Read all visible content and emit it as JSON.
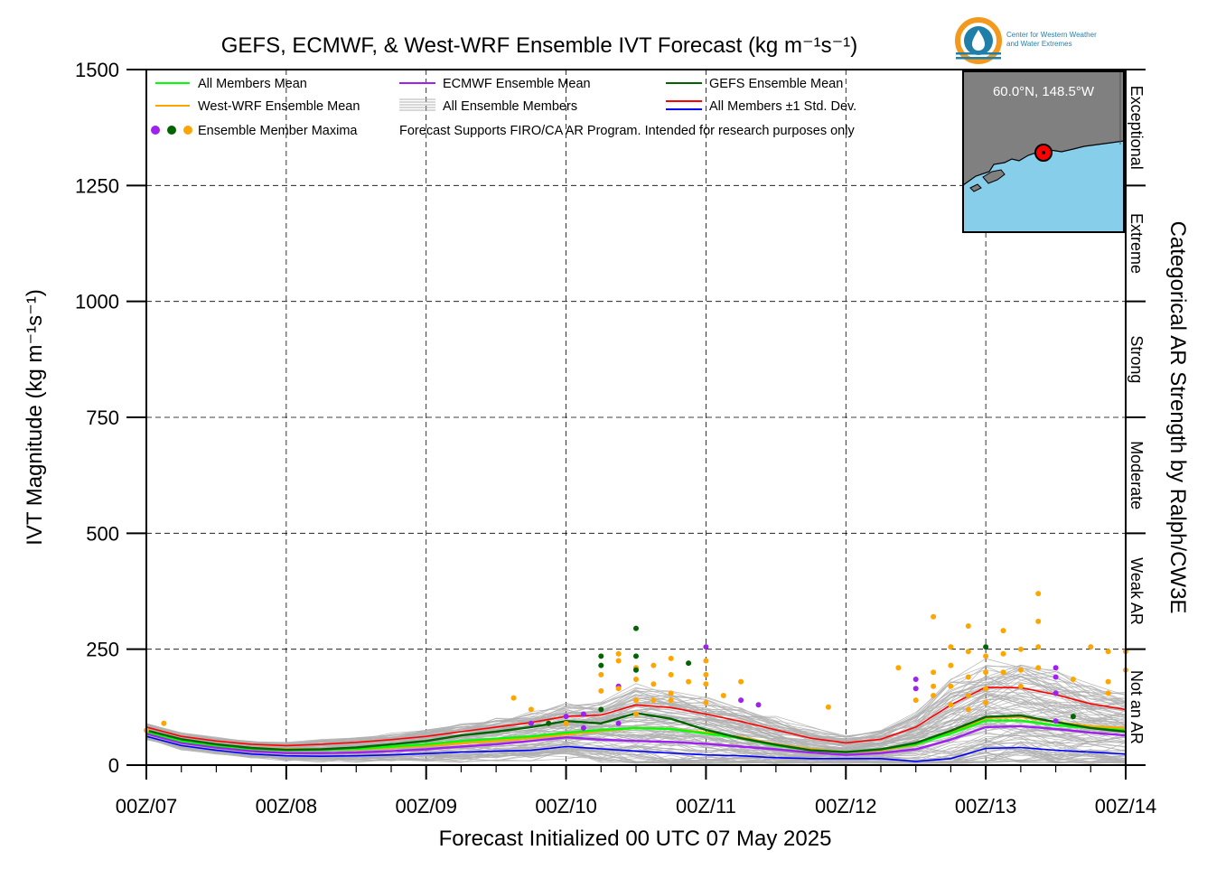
{
  "colors": {
    "all_mean": "#00ff00",
    "westwrf_mean": "#ffa500",
    "ecmwf_mean": "#a020f0",
    "gefs_mean": "#006400",
    "members": "#b0b0b0",
    "std_upper": "#ff0000",
    "std_lower": "#0000ff",
    "ocean": "#87ceeb",
    "land": "#808080",
    "logo_orange": "#f39a1e",
    "logo_blue": "#1f7fa8"
  },
  "logo": {
    "line1": "Center for Western Weather",
    "line2": "and Water Extremes"
  },
  "inset": {
    "location_label": "60.0°N, 148.5°W",
    "icon": "location-marker"
  },
  "chart_data": {
    "type": "line",
    "title": "GEFS, ECMWF, & West-WRF Ensemble IVT Forecast (kg m⁻¹s⁻¹)",
    "xlabel": "Forecast Initialized 00 UTC 07 May 2025",
    "ylabel": "IVT Magnitude (kg m⁻¹s⁻¹)",
    "right_axis_title": "Categorical AR Strength by Ralph/CW3E",
    "ylim": [
      0,
      1500
    ],
    "xlim": [
      0,
      168
    ],
    "x_unit": "forecast hour",
    "grid": true,
    "yticks": [
      0,
      250,
      500,
      750,
      1000,
      1250,
      1500
    ],
    "ytick_labels": [
      "0",
      "250",
      "500",
      "750",
      "1000",
      "1250",
      "1500"
    ],
    "xticks": [
      0,
      24,
      48,
      72,
      96,
      120,
      144,
      168
    ],
    "xtick_labels": [
      "00Z/07",
      "00Z/08",
      "00Z/09",
      "00Z/10",
      "00Z/11",
      "00Z/12",
      "00Z/13",
      "00Z/14"
    ],
    "categories": [
      {
        "label": "Not an AR",
        "from": 0,
        "to": 250
      },
      {
        "label": "Weak AR",
        "from": 250,
        "to": 500
      },
      {
        "label": "Moderate",
        "from": 500,
        "to": 750
      },
      {
        "label": "Strong",
        "from": 750,
        "to": 1000
      },
      {
        "label": "Extreme",
        "from": 1000,
        "to": 1250
      },
      {
        "label": "Exceptional",
        "from": 1250,
        "to": 1500
      }
    ],
    "legend": {
      "placement": "top-left",
      "entries": [
        {
          "label": "All Members Mean",
          "key": "all_mean"
        },
        {
          "label": "ECMWF Ensemble Mean",
          "key": "ecmwf_mean"
        },
        {
          "label": "GEFS Ensemble Mean",
          "key": "gefs_mean"
        },
        {
          "label": "West-WRF Ensemble Mean",
          "key": "westwrf_mean"
        },
        {
          "label": "All Ensemble Members",
          "key": "members"
        },
        {
          "label": "All Members ±1 Std. Dev.",
          "key": "std"
        },
        {
          "label": "Ensemble Member Maxima",
          "key": "maxima"
        }
      ],
      "note": "Forecast Supports FIRO/CA AR Program. Intended for research purposes only"
    },
    "x": [
      0,
      6,
      12,
      18,
      24,
      30,
      36,
      42,
      48,
      54,
      60,
      66,
      72,
      78,
      84,
      90,
      96,
      102,
      108,
      114,
      120,
      126,
      132,
      138,
      144,
      150,
      156,
      162,
      168
    ],
    "series": [
      {
        "name": "All Members Mean",
        "key": "all_mean",
        "values": [
          72,
          52,
          42,
          35,
          32,
          33,
          35,
          40,
          45,
          52,
          57,
          62,
          70,
          76,
          80,
          78,
          68,
          58,
          42,
          32,
          28,
          34,
          45,
          68,
          96,
          96,
          86,
          80,
          75
        ]
      },
      {
        "name": "West-WRF Ensemble Mean",
        "key": "westwrf_mean",
        "values": [
          74,
          55,
          44,
          37,
          34,
          34,
          34,
          38,
          42,
          47,
          52,
          58,
          66,
          74,
          80,
          78,
          70,
          60,
          45,
          34,
          28,
          32,
          44,
          70,
          102,
          104,
          93,
          84,
          80
        ]
      },
      {
        "name": "ECMWF Ensemble Mean",
        "key": "ecmwf_mean",
        "values": [
          68,
          48,
          38,
          30,
          26,
          26,
          27,
          30,
          34,
          40,
          45,
          52,
          60,
          55,
          52,
          50,
          46,
          40,
          34,
          27,
          22,
          26,
          34,
          55,
          82,
          84,
          78,
          70,
          64
        ]
      },
      {
        "name": "GEFS Ensemble Mean",
        "key": "gefs_mean",
        "values": [
          75,
          56,
          45,
          37,
          33,
          34,
          38,
          45,
          52,
          64,
          72,
          82,
          95,
          90,
          112,
          100,
          76,
          58,
          44,
          32,
          28,
          34,
          48,
          74,
          104,
          107,
          93,
          80,
          72
        ]
      },
      {
        "name": "All Members ±1 Std. Dev.",
        "key": "std_upper",
        "values": [
          82,
          62,
          52,
          45,
          42,
          45,
          49,
          55,
          62,
          72,
          82,
          92,
          105,
          108,
          130,
          124,
          110,
          94,
          76,
          58,
          48,
          56,
          82,
          130,
          168,
          167,
          152,
          132,
          120
        ]
      },
      {
        "name": "All Members ±1 Std. Dev. (lower)",
        "key": "std_lower",
        "values": [
          62,
          42,
          32,
          24,
          20,
          19,
          20,
          22,
          25,
          28,
          30,
          32,
          40,
          35,
          30,
          26,
          22,
          20,
          16,
          14,
          14,
          14,
          8,
          14,
          36,
          38,
          32,
          28,
          24
        ]
      }
    ],
    "maxima": [
      {
        "x": 0,
        "y": 75,
        "model": "westwrf"
      },
      {
        "x": 3,
        "y": 90,
        "model": "westwrf"
      },
      {
        "x": 63,
        "y": 145,
        "model": "westwrf"
      },
      {
        "x": 66,
        "y": 120,
        "model": "westwrf"
      },
      {
        "x": 66,
        "y": 90,
        "model": "ecmwf"
      },
      {
        "x": 69,
        "y": 90,
        "model": "gefs"
      },
      {
        "x": 72,
        "y": 105,
        "model": "ecmwf"
      },
      {
        "x": 72,
        "y": 90,
        "model": "westwrf"
      },
      {
        "x": 75,
        "y": 110,
        "model": "ecmwf"
      },
      {
        "x": 75,
        "y": 80,
        "model": "ecmwf"
      },
      {
        "x": 78,
        "y": 235,
        "model": "gefs"
      },
      {
        "x": 78,
        "y": 215,
        "model": "gefs"
      },
      {
        "x": 78,
        "y": 195,
        "model": "westwrf"
      },
      {
        "x": 78,
        "y": 160,
        "model": "westwrf"
      },
      {
        "x": 78,
        "y": 120,
        "model": "gefs"
      },
      {
        "x": 81,
        "y": 170,
        "model": "ecmwf"
      },
      {
        "x": 81,
        "y": 240,
        "model": "westwrf"
      },
      {
        "x": 81,
        "y": 225,
        "model": "westwrf"
      },
      {
        "x": 81,
        "y": 165,
        "model": "westwrf"
      },
      {
        "x": 81,
        "y": 90,
        "model": "ecmwf"
      },
      {
        "x": 84,
        "y": 210,
        "model": "westwrf"
      },
      {
        "x": 84,
        "y": 185,
        "model": "westwrf"
      },
      {
        "x": 84,
        "y": 140,
        "model": "westwrf"
      },
      {
        "x": 84,
        "y": 110,
        "model": "westwrf"
      },
      {
        "x": 84,
        "y": 295,
        "model": "gefs"
      },
      {
        "x": 84,
        "y": 235,
        "model": "gefs"
      },
      {
        "x": 84,
        "y": 205,
        "model": "gefs"
      },
      {
        "x": 87,
        "y": 215,
        "model": "westwrf"
      },
      {
        "x": 87,
        "y": 175,
        "model": "westwrf"
      },
      {
        "x": 87,
        "y": 140,
        "model": "westwrf"
      },
      {
        "x": 90,
        "y": 230,
        "model": "westwrf"
      },
      {
        "x": 90,
        "y": 195,
        "model": "westwrf"
      },
      {
        "x": 90,
        "y": 155,
        "model": "westwrf"
      },
      {
        "x": 90,
        "y": 140,
        "model": "westwrf"
      },
      {
        "x": 93,
        "y": 220,
        "model": "gefs"
      },
      {
        "x": 93,
        "y": 180,
        "model": "westwrf"
      },
      {
        "x": 96,
        "y": 225,
        "model": "westwrf"
      },
      {
        "x": 96,
        "y": 175,
        "model": "westwrf"
      },
      {
        "x": 96,
        "y": 135,
        "model": "westwrf"
      },
      {
        "x": 96,
        "y": 255,
        "model": "ecmwf"
      },
      {
        "x": 96,
        "y": 195,
        "model": "westwrf"
      },
      {
        "x": 99,
        "y": 150,
        "model": "westwrf"
      },
      {
        "x": 102,
        "y": 140,
        "model": "ecmwf"
      },
      {
        "x": 102,
        "y": 180,
        "model": "westwrf"
      },
      {
        "x": 105,
        "y": 130,
        "model": "ecmwf"
      },
      {
        "x": 117,
        "y": 125,
        "model": "westwrf"
      },
      {
        "x": 135,
        "y": 320,
        "model": "westwrf"
      },
      {
        "x": 129,
        "y": 210,
        "model": "westwrf"
      },
      {
        "x": 132,
        "y": 185,
        "model": "ecmwf"
      },
      {
        "x": 132,
        "y": 165,
        "model": "ecmwf"
      },
      {
        "x": 132,
        "y": 140,
        "model": "westwrf"
      },
      {
        "x": 135,
        "y": 200,
        "model": "westwrf"
      },
      {
        "x": 135,
        "y": 170,
        "model": "westwrf"
      },
      {
        "x": 135,
        "y": 150,
        "model": "westwrf"
      },
      {
        "x": 138,
        "y": 255,
        "model": "westwrf"
      },
      {
        "x": 138,
        "y": 215,
        "model": "westwrf"
      },
      {
        "x": 138,
        "y": 170,
        "model": "westwrf"
      },
      {
        "x": 138,
        "y": 130,
        "model": "westwrf"
      },
      {
        "x": 141,
        "y": 300,
        "model": "westwrf"
      },
      {
        "x": 141,
        "y": 245,
        "model": "westwrf"
      },
      {
        "x": 141,
        "y": 190,
        "model": "westwrf"
      },
      {
        "x": 141,
        "y": 150,
        "model": "westwrf"
      },
      {
        "x": 141,
        "y": 120,
        "model": "westwrf"
      },
      {
        "x": 144,
        "y": 255,
        "model": "gefs"
      },
      {
        "x": 144,
        "y": 235,
        "model": "westwrf"
      },
      {
        "x": 144,
        "y": 200,
        "model": "westwrf"
      },
      {
        "x": 144,
        "y": 165,
        "model": "westwrf"
      },
      {
        "x": 144,
        "y": 135,
        "model": "westwrf"
      },
      {
        "x": 147,
        "y": 290,
        "model": "westwrf"
      },
      {
        "x": 147,
        "y": 240,
        "model": "westwrf"
      },
      {
        "x": 147,
        "y": 200,
        "model": "westwrf"
      },
      {
        "x": 150,
        "y": 250,
        "model": "westwrf"
      },
      {
        "x": 150,
        "y": 205,
        "model": "westwrf"
      },
      {
        "x": 150,
        "y": 170,
        "model": "westwrf"
      },
      {
        "x": 153,
        "y": 370,
        "model": "westwrf"
      },
      {
        "x": 153,
        "y": 310,
        "model": "westwrf"
      },
      {
        "x": 153,
        "y": 255,
        "model": "westwrf"
      },
      {
        "x": 153,
        "y": 210,
        "model": "westwrf"
      },
      {
        "x": 156,
        "y": 210,
        "model": "ecmwf"
      },
      {
        "x": 156,
        "y": 190,
        "model": "ecmwf"
      },
      {
        "x": 156,
        "y": 155,
        "model": "ecmwf"
      },
      {
        "x": 156,
        "y": 95,
        "model": "ecmwf"
      },
      {
        "x": 159,
        "y": 185,
        "model": "westwrf"
      },
      {
        "x": 159,
        "y": 105,
        "model": "gefs"
      },
      {
        "x": 162,
        "y": 255,
        "model": "westwrf"
      },
      {
        "x": 165,
        "y": 245,
        "model": "westwrf"
      },
      {
        "x": 165,
        "y": 180,
        "model": "westwrf"
      },
      {
        "x": 165,
        "y": 155,
        "model": "westwrf"
      },
      {
        "x": 168,
        "y": 245,
        "model": "westwrf"
      },
      {
        "x": 168,
        "y": 205,
        "model": "westwrf"
      }
    ]
  }
}
